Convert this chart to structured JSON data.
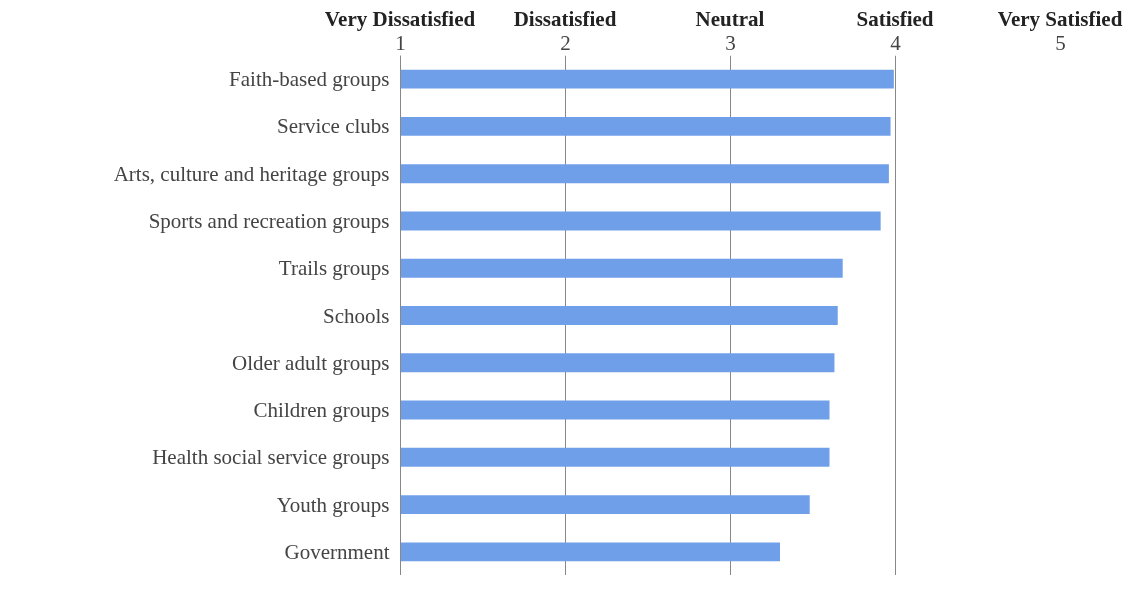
{
  "chart_data": {
    "type": "bar",
    "orientation": "horizontal",
    "categories": [
      "Faith-based groups",
      "Service clubs",
      "Arts, culture and heritage groups",
      "Sports and recreation groups",
      "Trails groups",
      "Schools",
      "Older adult groups",
      "Children groups",
      "Health social service groups",
      "Youth groups",
      "Government"
    ],
    "values": [
      3.99,
      3.97,
      3.96,
      3.91,
      3.68,
      3.65,
      3.63,
      3.6,
      3.6,
      3.48,
      3.3
    ],
    "color": "#6f9fe8",
    "xlim": [
      1,
      5
    ],
    "xticks": [
      1,
      2,
      3,
      4,
      5
    ],
    "annotations": [
      "Very Dissatisfied",
      "Dissatisfied",
      "Neutral",
      "Satisfied",
      "Very Satisfied"
    ],
    "grid": "x"
  }
}
